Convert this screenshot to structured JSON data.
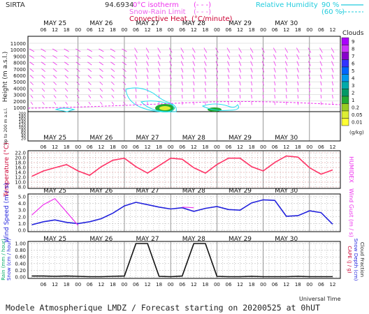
{
  "header": {
    "station": "SIRTA",
    "coords": "94.6934",
    "legend_isotherm": "0°C isotherm",
    "legend_isotherm_mark": "(- - -)",
    "legend_snowrain": "Snow-Rain Limit",
    "legend_snowrain_mark": "(- - -)",
    "legend_convective": "Convective Heat. (°C/minute)",
    "legend_convective_mark": "(———)",
    "legend_rh": "Relative Humidity",
    "legend_rh90": "90 %",
    "legend_rh60": "(60 %)",
    "rh_color": "#22ddee",
    "iso_color": "#ee33ee",
    "conv_color": "#cc0033"
  },
  "days": [
    "MAY 25",
    "MAY 26",
    "MAY 27",
    "MAY 28",
    "MAY 29",
    "MAY 30"
  ],
  "hour_ticks": [
    "06",
    "12",
    "18",
    "00"
  ],
  "panels": {
    "clouds": {
      "ylabel": "Height (m a.s.l.)",
      "ylabel_low": "Up to 200 m a.s.l.",
      "yticks_high": [
        "11000",
        "10000",
        "9000",
        "8000",
        "7000",
        "6000",
        "5000",
        "4000",
        "3000",
        "2000",
        "1000"
      ],
      "yticks_low": [
        "200",
        "180",
        "160",
        "140",
        "120",
        "100",
        "80",
        "60",
        "40",
        "20"
      ],
      "cloud_legend_title": "Clouds",
      "cloud_legend_unit": "(g/kg)",
      "cloud_levels": [
        "9",
        "8",
        "7",
        "6",
        "5",
        "4",
        "3",
        "2",
        "1",
        "0.2",
        "0.05",
        "0.01"
      ],
      "cloud_colors": [
        "#aa00ff",
        "#cc33ff",
        "#8800cc",
        "#3333ff",
        "#0066ff",
        "#0099ee",
        "#00aaaa",
        "#009966",
        "#22aa33",
        "#99cc22",
        "#ddee33",
        "#ffff33"
      ],
      "arrow_color": "#ee33ee"
    },
    "temperature": {
      "ylabel": "Temperature (°C)",
      "rlabel": "HUMIDEX",
      "yticks": [
        "22.0",
        "20.0",
        "18.0",
        "16.0",
        "14.0",
        "12.0",
        "10.0",
        "8.0"
      ],
      "ylim": [
        7,
        23
      ],
      "line_color": "#ff3366"
    },
    "wind": {
      "ylabel": "Wind Speed (m / s)",
      "rlabel": "Wind Gust (m / s)",
      "yticks": [
        "5.0",
        "4.0",
        "3.0",
        "2.0",
        "1.0",
        "0.0"
      ],
      "ylim": [
        0,
        5.5
      ],
      "speed_color": "#2222dd",
      "gust_color": "#ee33ee"
    },
    "precip": {
      "ylabel_rain": "Rain (mm / hour)",
      "ylabel_snow": "Snow (cm / hour)",
      "rlabel_cape": "CAPE (J / g)",
      "rlabel_snowdepth": "Snow Depth (cm)",
      "rlabel_cloudfrac": "Cloud Fraction",
      "yticks": [
        "1.00",
        "0.80",
        "0.60",
        "0.40",
        "0.20",
        "0.00"
      ],
      "ylim": [
        0,
        1.0
      ],
      "xlabel": "Universal Time"
    }
  },
  "footer": {
    "caption": "Modele Atmospherique LMDZ / Forecast starting on 20200525 at 0hUT"
  },
  "chart_data": [
    {
      "type": "line",
      "name": "temperature",
      "x_hours_from_start": [
        0,
        6,
        12,
        18,
        24,
        30,
        36,
        42,
        48,
        54,
        60,
        66,
        72,
        78,
        84,
        90,
        96,
        102,
        108,
        114,
        120,
        126,
        132,
        138,
        144,
        150,
        156
      ],
      "series": [
        {
          "name": "Temperature",
          "values": [
            12.0,
            14.5,
            16.0,
            17.5,
            14.5,
            12.5,
            16.5,
            19.5,
            20.5,
            16.5,
            13.5,
            17.0,
            20.5,
            20.0,
            16.0,
            13.5,
            17.5,
            20.5,
            20.5,
            16.5,
            14.5,
            18.5,
            21.5,
            21.0,
            16.0,
            13.0,
            15.0
          ]
        }
      ]
    },
    {
      "type": "line",
      "name": "wind",
      "x_hours_from_start": [
        0,
        6,
        12,
        18,
        24,
        30,
        36,
        42,
        48,
        54,
        60,
        66,
        72,
        78,
        84,
        90,
        96,
        102,
        108,
        114,
        120,
        126,
        132,
        138,
        144,
        150,
        156
      ],
      "series": [
        {
          "name": "Wind Speed",
          "values": [
            0.9,
            1.4,
            1.7,
            1.3,
            1.1,
            1.4,
            1.9,
            2.8,
            4.0,
            4.6,
            4.2,
            3.8,
            3.5,
            3.7,
            3.1,
            3.6,
            3.9,
            3.4,
            3.3,
            4.5,
            5.0,
            4.9,
            2.3,
            2.4,
            3.2,
            2.9,
            1.0
          ]
        },
        {
          "name": "Wind Gust",
          "values": [
            2.5,
            4.2,
            5.2,
            3.0,
            0.8,
            null,
            null,
            null,
            null,
            null,
            null,
            null,
            null,
            3.8,
            3.7,
            null,
            null,
            null,
            null,
            null,
            null,
            null,
            null,
            null,
            null,
            null,
            null
          ]
        }
      ]
    },
    {
      "type": "area",
      "name": "cloud_fraction",
      "x_hours_from_start": [
        0,
        6,
        12,
        18,
        24,
        30,
        36,
        42,
        48,
        54,
        60,
        66,
        72,
        78,
        84,
        90,
        96,
        102,
        108,
        114,
        120,
        126,
        132,
        138,
        144,
        150,
        156
      ],
      "series": [
        {
          "name": "Cloud Fraction",
          "values": [
            0.03,
            0.03,
            0.02,
            0.03,
            0.02,
            0.01,
            0.01,
            0.02,
            0.03,
            1.0,
            1.0,
            0.02,
            0.01,
            0.03,
            1.0,
            1.0,
            0.02,
            0.01,
            0.01,
            0.02,
            0.01,
            0.01,
            0.01,
            0.02,
            0.01,
            0.01,
            0.01
          ]
        }
      ]
    }
  ]
}
